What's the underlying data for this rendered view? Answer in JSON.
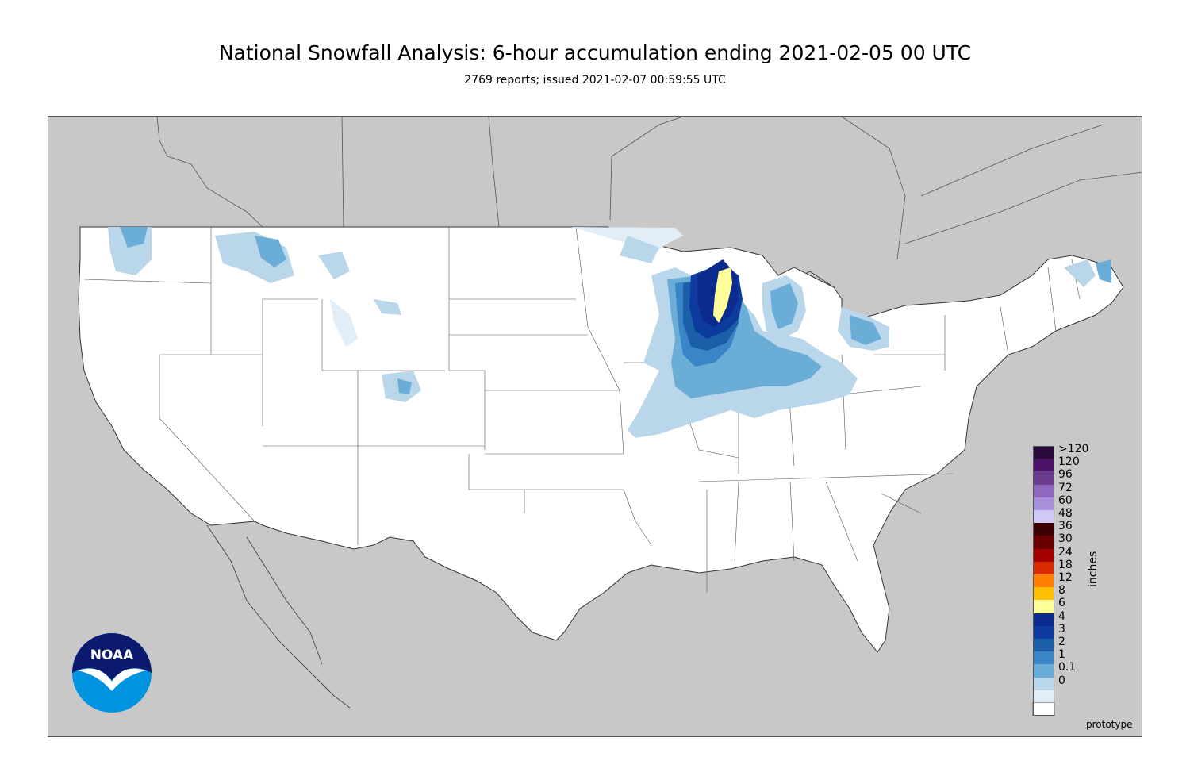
{
  "title": "National Snowfall Analysis: 6-hour accumulation ending 2021-02-05 00 UTC",
  "subtitle": "2769 reports; issued 2021-02-07 00:59:55 UTC",
  "colorbar": {
    "units": "inches",
    "classes": [
      {
        "label": ">120",
        "color": "#2a0a3d"
      },
      {
        "label": "120",
        "color": "#4b1466"
      },
      {
        "label": "96",
        "color": "#6a3d8f"
      },
      {
        "label": "72",
        "color": "#8f67bf"
      },
      {
        "label": "60",
        "color": "#a88fd9"
      },
      {
        "label": "48",
        "color": "#cfc9f7"
      },
      {
        "label": "36",
        "color": "#3d0000"
      },
      {
        "label": "30",
        "color": "#6b0000"
      },
      {
        "label": "24",
        "color": "#a50000"
      },
      {
        "label": "18",
        "color": "#d92b00"
      },
      {
        "label": "12",
        "color": "#ff8000"
      },
      {
        "label": "8",
        "color": "#ffbf00"
      },
      {
        "label": "6",
        "color": "#ffff99"
      },
      {
        "label": "4",
        "color": "#0c2b8f"
      },
      {
        "label": "3",
        "color": "#0d3b9e"
      },
      {
        "label": "2",
        "color": "#1a5fa8"
      },
      {
        "label": "1",
        "color": "#3a85c6"
      },
      {
        "label": "0.1",
        "color": "#6aaed8"
      },
      {
        "label": "0",
        "color": "#b9d6ea"
      },
      {
        "label": "",
        "color": "#e1edf7"
      },
      {
        "label": "",
        "color": "#ffffff"
      }
    ]
  },
  "logo": {
    "text": "NOAA",
    "primary_color": "#0a1a6e",
    "secondary_color": "#0093e0"
  },
  "footer_note": "prototype"
}
